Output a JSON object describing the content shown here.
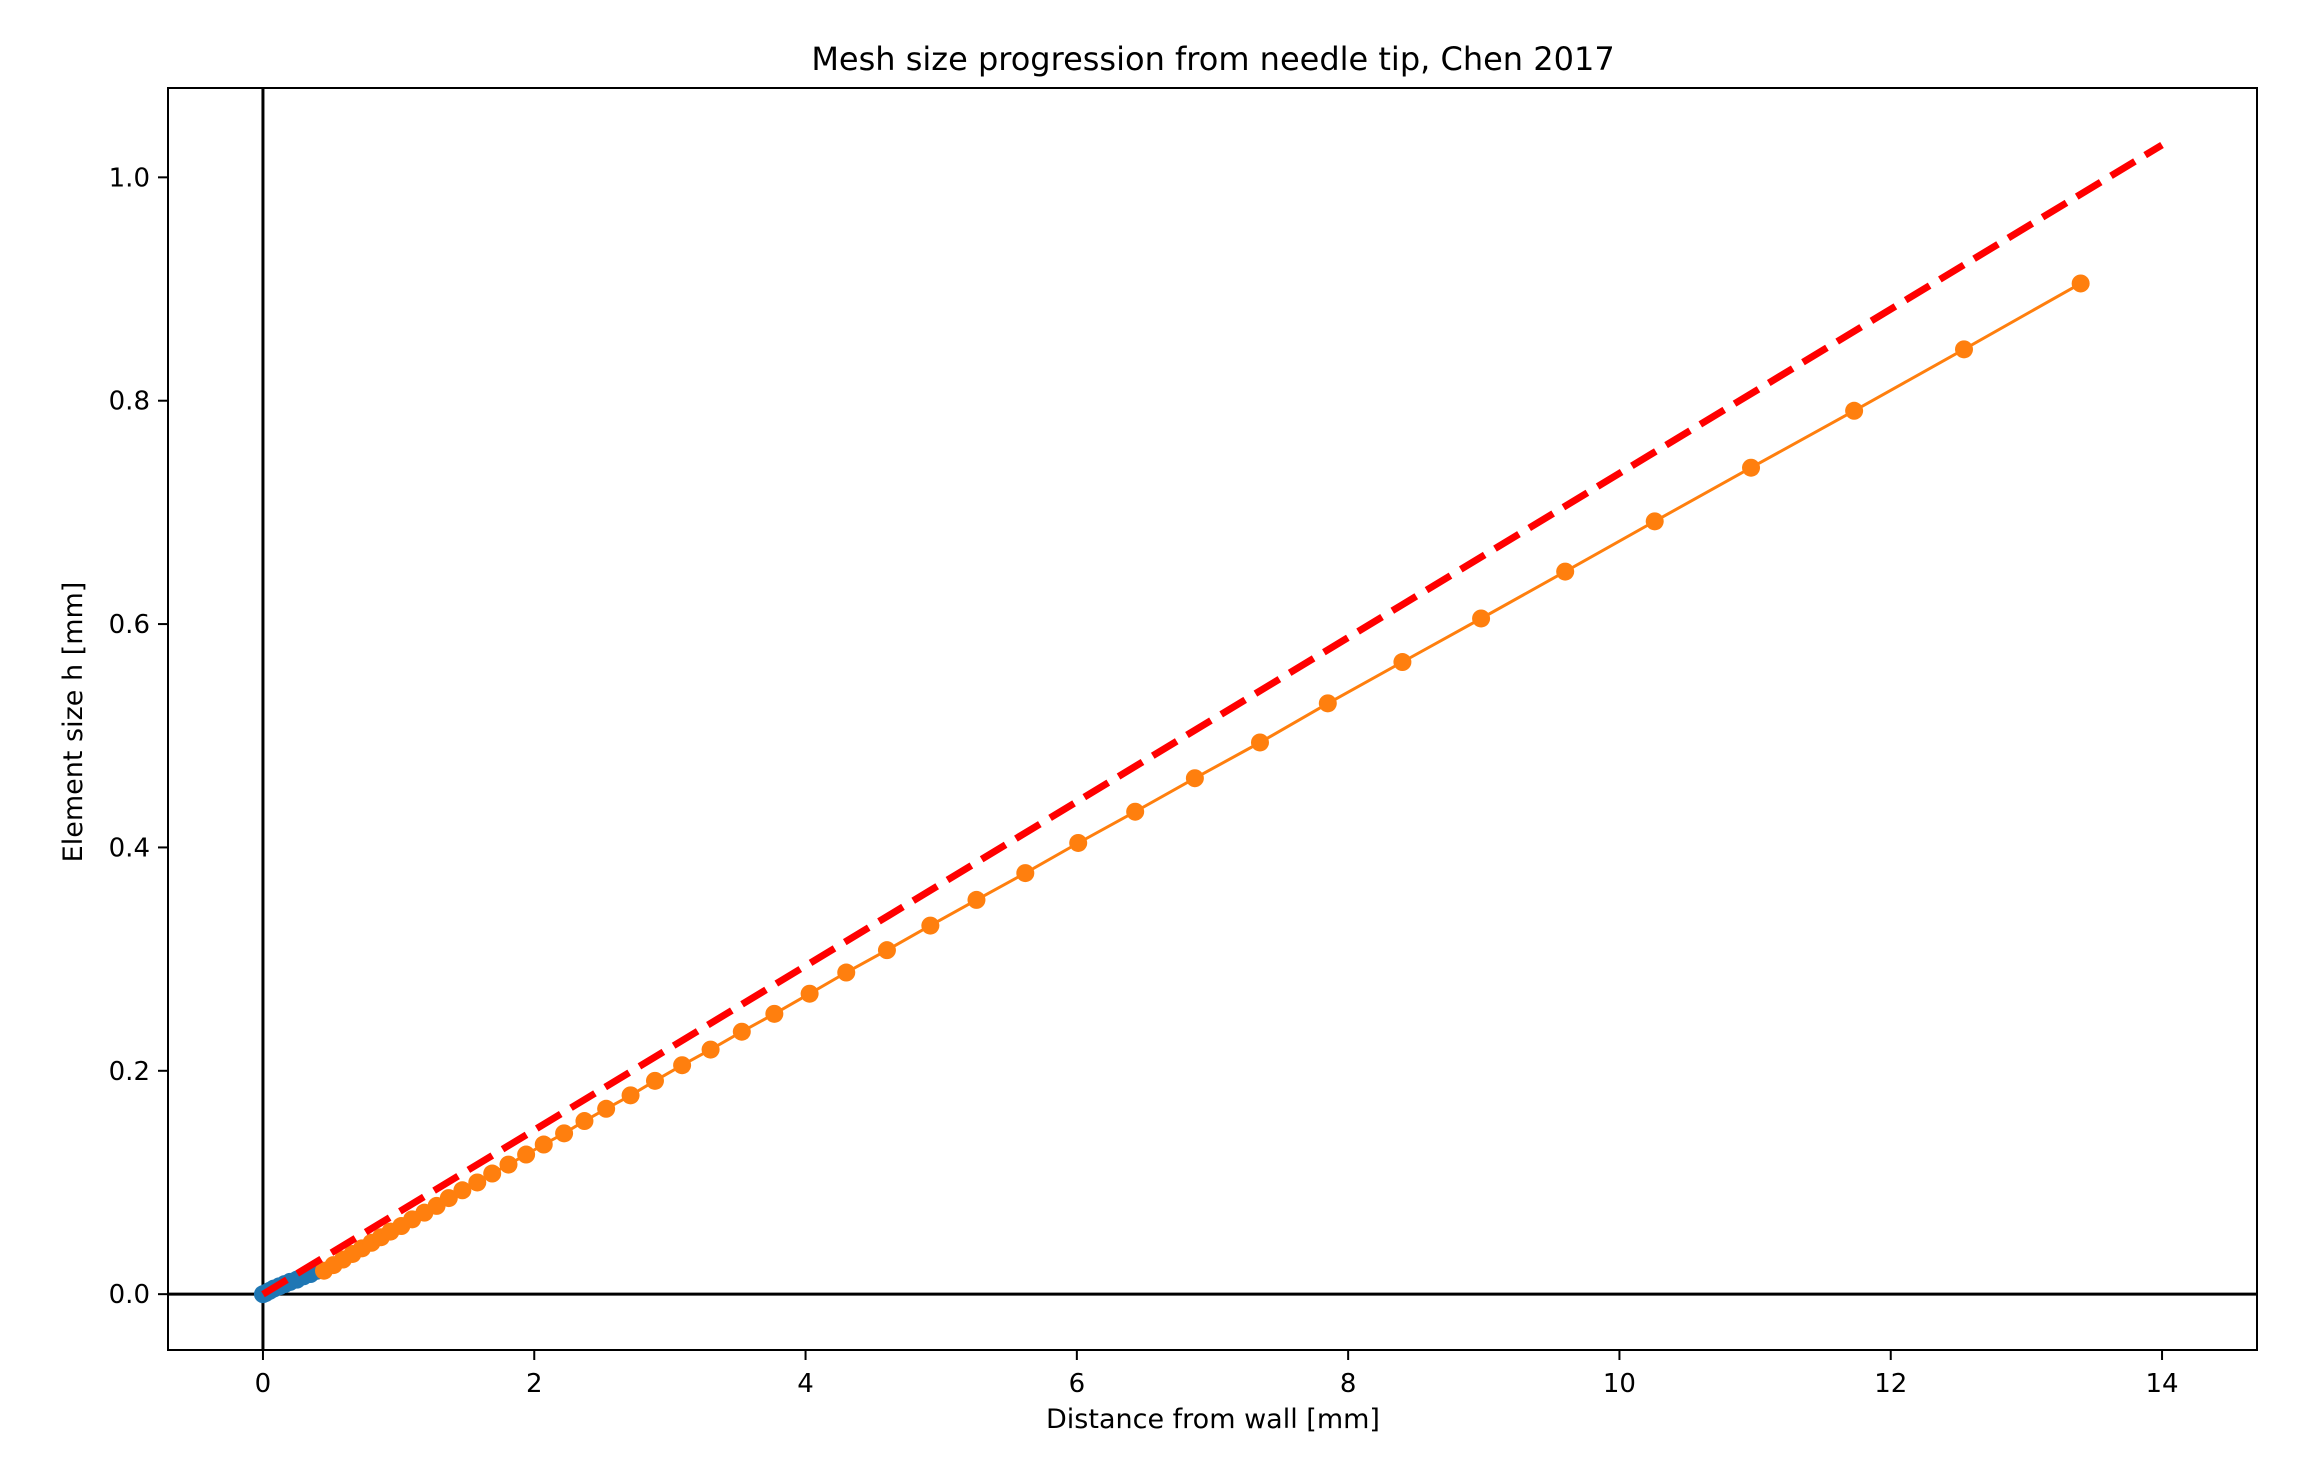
{
  "chart_data": {
    "type": "line",
    "title": "Mesh size progression from needle tip, Chen 2017",
    "xlabel": "Distance from wall [mm]",
    "ylabel": "Element size h [mm]",
    "xlim": [
      -0.7,
      14.7
    ],
    "ylim": [
      -0.05,
      1.08
    ],
    "xticks": [
      0,
      2,
      4,
      6,
      8,
      10,
      12,
      14
    ],
    "xtick_labels": [
      "0",
      "2",
      "4",
      "6",
      "8",
      "10",
      "12",
      "14"
    ],
    "yticks": [
      0.0,
      0.2,
      0.4,
      0.6,
      0.8,
      1.0
    ],
    "ytick_labels": [
      "0.0",
      "0.2",
      "0.4",
      "0.6",
      "0.8",
      "1.0"
    ],
    "grid": false,
    "reference_lines": {
      "x": 0,
      "y": 0,
      "color": "#000000"
    },
    "series": [
      {
        "style": "thick-line-markers",
        "color": "#1f77b4",
        "x": [
          0.0,
          0.02,
          0.05,
          0.08,
          0.12,
          0.16,
          0.2,
          0.25,
          0.3,
          0.35,
          0.4
        ],
        "y": [
          0.0,
          0.001,
          0.003,
          0.005,
          0.007,
          0.009,
          0.011,
          0.013,
          0.016,
          0.018,
          0.021
        ]
      },
      {
        "style": "line-markers",
        "color": "#ff7f0e",
        "x": [
          0.45,
          0.52,
          0.59,
          0.66,
          0.73,
          0.8,
          0.87,
          0.94,
          1.02,
          1.1,
          1.19,
          1.28,
          1.37,
          1.47,
          1.58,
          1.69,
          1.81,
          1.94,
          2.07,
          2.22,
          2.37,
          2.53,
          2.71,
          2.89,
          3.09,
          3.3,
          3.53,
          3.77,
          4.03,
          4.3,
          4.6,
          4.92,
          5.26,
          5.62,
          6.01,
          6.43,
          6.87,
          7.35,
          7.85,
          8.4,
          8.98,
          9.6,
          10.26,
          10.97,
          11.73,
          12.54,
          13.4
        ],
        "y": [
          0.021,
          0.026,
          0.031,
          0.036,
          0.041,
          0.046,
          0.051,
          0.056,
          0.061,
          0.067,
          0.073,
          0.079,
          0.086,
          0.093,
          0.1,
          0.108,
          0.116,
          0.125,
          0.134,
          0.144,
          0.155,
          0.166,
          0.178,
          0.191,
          0.205,
          0.219,
          0.235,
          0.251,
          0.269,
          0.288,
          0.308,
          0.33,
          0.353,
          0.377,
          0.404,
          0.432,
          0.462,
          0.494,
          0.529,
          0.566,
          0.605,
          0.647,
          0.692,
          0.74,
          0.791,
          0.846,
          0.905
        ]
      },
      {
        "style": "dashed",
        "color": "#ff0000",
        "x": [
          0.0,
          14.0
        ],
        "y": [
          0.0,
          1.029
        ]
      }
    ]
  }
}
